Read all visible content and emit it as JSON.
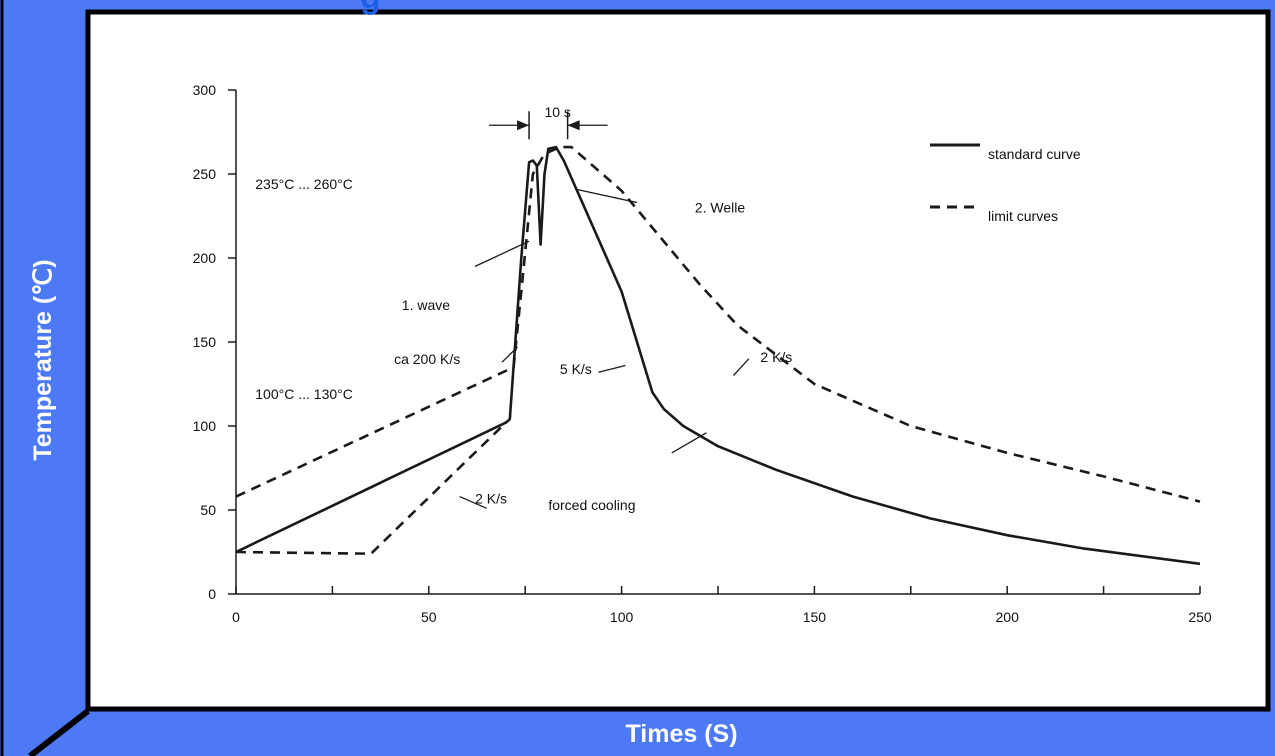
{
  "colors": {
    "frame_blue": "#4d79f5",
    "banner_text": "#1f5fe8",
    "border": "#000000",
    "curve": "#1a1a1a"
  },
  "header": {
    "partial_title": "g"
  },
  "labels": {
    "y_axis": "Temperature (℃)",
    "x_axis": "Times (S)"
  },
  "chart_data": {
    "type": "line",
    "xlim": [
      0,
      250
    ],
    "ylim": [
      0,
      300
    ],
    "x_ticks": [
      0,
      50,
      100,
      150,
      200,
      250
    ],
    "y_ticks": [
      0,
      50,
      100,
      150,
      200,
      250,
      300
    ],
    "grid": false,
    "legend_position": "top-right",
    "legend": [
      {
        "label": "standard curve",
        "style": "solid"
      },
      {
        "label": "limit curves",
        "style": "dashed"
      }
    ],
    "series": [
      {
        "style": "solid",
        "points": [
          [
            0,
            25
          ],
          [
            70,
            102
          ],
          [
            71,
            104
          ],
          [
            74,
            200
          ],
          [
            76,
            257
          ],
          [
            77,
            258
          ],
          [
            78,
            255
          ],
          [
            79,
            208
          ],
          [
            80,
            250
          ],
          [
            81,
            265
          ],
          [
            83,
            266
          ],
          [
            85,
            258
          ],
          [
            100,
            180
          ],
          [
            108,
            120
          ],
          [
            111,
            110
          ],
          [
            116,
            100
          ],
          [
            125,
            88
          ],
          [
            140,
            74
          ],
          [
            160,
            58
          ],
          [
            180,
            45
          ],
          [
            200,
            35
          ],
          [
            220,
            27
          ],
          [
            250,
            18
          ]
        ]
      },
      {
        "style": "dashed",
        "points": [
          [
            0,
            58
          ],
          [
            72,
            135
          ],
          [
            74,
            180
          ],
          [
            77,
            250
          ],
          [
            80,
            262
          ],
          [
            84,
            266
          ],
          [
            87,
            266
          ],
          [
            100,
            240
          ],
          [
            120,
            185
          ],
          [
            130,
            160
          ],
          [
            150,
            125
          ],
          [
            175,
            100
          ],
          [
            200,
            84
          ],
          [
            225,
            70
          ],
          [
            250,
            55
          ]
        ]
      },
      {
        "style": "dashed",
        "points": [
          [
            0,
            25
          ],
          [
            35,
            24
          ],
          [
            70,
            102
          ]
        ]
      }
    ],
    "annotations": [
      {
        "text": "235°C ... 260°C",
        "x": 5,
        "y": 241
      },
      {
        "text": "100°C ... 130°C",
        "x": 5,
        "y": 116
      },
      {
        "text": "10 s",
        "x": 80,
        "y": 284
      },
      {
        "text": "2. Welle",
        "x": 119,
        "y": 227
      },
      {
        "text": "1. wave",
        "x": 43,
        "y": 169
      },
      {
        "text": "ca 200 K/s",
        "x": 41,
        "y": 137
      },
      {
        "text": "5 K/s",
        "x": 84,
        "y": 131
      },
      {
        "text": "2 K/s",
        "x": 136,
        "y": 138
      },
      {
        "text": "2 K/s",
        "x": 62,
        "y": 54
      },
      {
        "text": "forced cooling",
        "x": 81,
        "y": 50
      }
    ],
    "leaders": [
      [
        [
          104,
          233
        ],
        [
          88,
          241
        ]
      ],
      [
        [
          62,
          195
        ],
        [
          76,
          210
        ]
      ],
      [
        [
          73,
          147
        ],
        [
          69,
          138
        ]
      ],
      [
        [
          101,
          136
        ],
        [
          94,
          132
        ]
      ],
      [
        [
          133,
          140
        ],
        [
          129,
          130
        ]
      ],
      [
        [
          58,
          58
        ],
        [
          65,
          51
        ]
      ],
      [
        [
          122,
          96
        ],
        [
          113,
          84
        ]
      ]
    ],
    "bracket": {
      "x_from": 76,
      "x_to": 86,
      "y": 279
    }
  }
}
